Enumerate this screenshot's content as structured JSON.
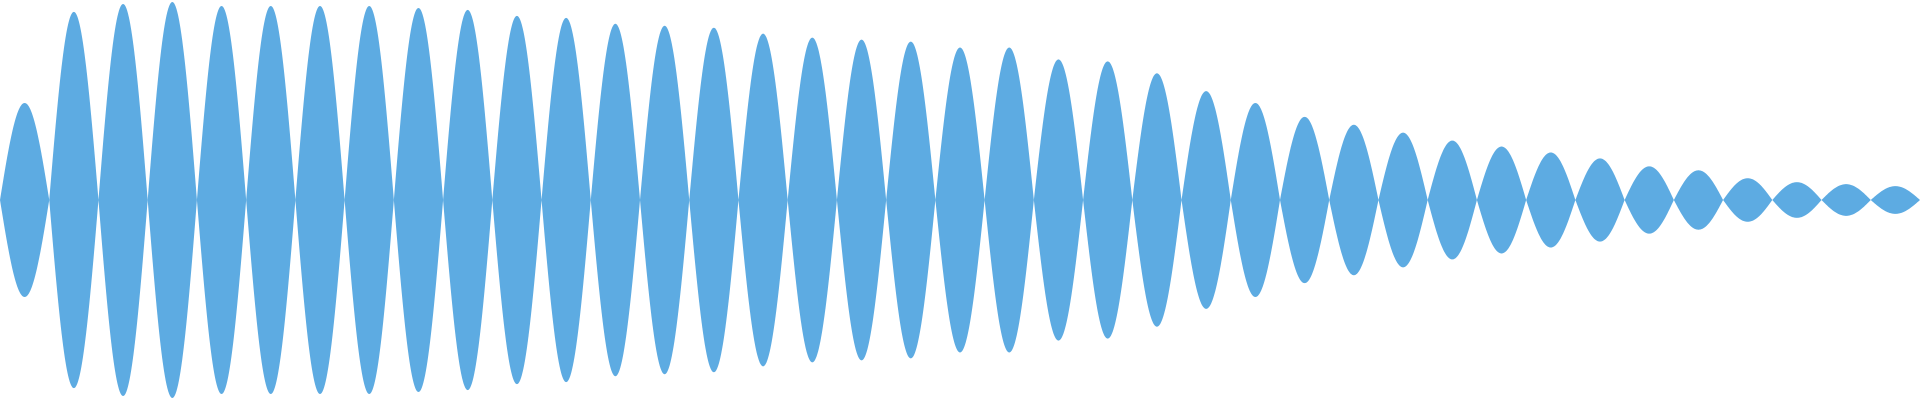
{
  "waveform": {
    "fill_color": "#5DABE2",
    "background_color": "#FFFFFF",
    "lobe_count": 39,
    "peak_levels": [
      0.49,
      0.95,
      0.99,
      1.0,
      0.98,
      0.98,
      0.98,
      0.98,
      0.97,
      0.96,
      0.93,
      0.92,
      0.89,
      0.88,
      0.87,
      0.84,
      0.82,
      0.81,
      0.8,
      0.77,
      0.77,
      0.71,
      0.7,
      0.64,
      0.55,
      0.49,
      0.42,
      0.38,
      0.34,
      0.3,
      0.27,
      0.24,
      0.21,
      0.17,
      0.15,
      0.11,
      0.09,
      0.08,
      0.07
    ]
  }
}
